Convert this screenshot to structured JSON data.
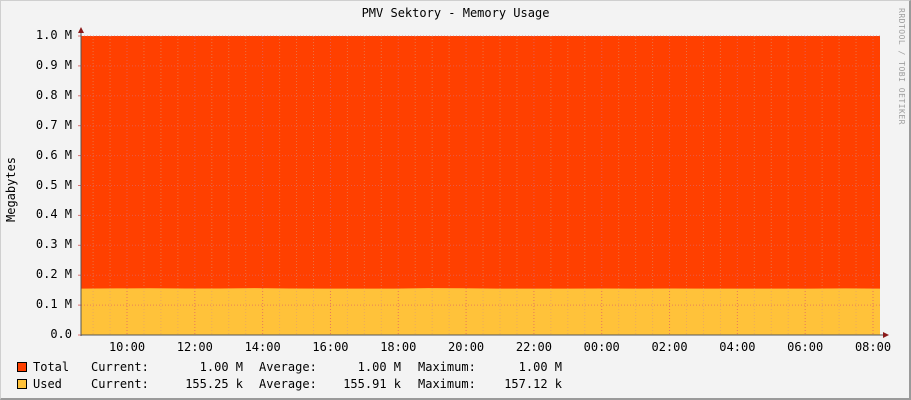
{
  "chart_data": {
    "type": "area",
    "title": "PMV Sektory - Memory Usage",
    "xlabel": "",
    "ylabel": "Megabytes",
    "watermark": "RRDTOOL / TOBI OETIKER",
    "ylim": [
      0,
      1.0
    ],
    "y_ticks": [
      "0.0",
      "0.1 M",
      "0.2 M",
      "0.3 M",
      "0.4 M",
      "0.5 M",
      "0.6 M",
      "0.7 M",
      "0.8 M",
      "0.9 M",
      "1.0 M"
    ],
    "x_ticks": [
      "10:00",
      "12:00",
      "14:00",
      "16:00",
      "18:00",
      "20:00",
      "22:00",
      "00:00",
      "02:00",
      "04:00",
      "06:00",
      "08:00"
    ],
    "grid": true,
    "legend_position": "bottom",
    "series": [
      {
        "name": "Total",
        "color": "#ff4000",
        "unit": "M",
        "values_approx": "constant 1.00 M over the full range"
      },
      {
        "name": "Used",
        "color": "#ffc23a",
        "unit": "k",
        "values_approx": "roughly flat ~155-157 k with small bumps"
      }
    ],
    "x": [
      "09:00",
      "10:00",
      "11:00",
      "12:00",
      "13:00",
      "14:00",
      "15:00",
      "16:00",
      "17:00",
      "18:00",
      "19:00",
      "20:00",
      "21:00",
      "22:00",
      "23:00",
      "00:00",
      "01:00",
      "02:00",
      "03:00",
      "04:00",
      "05:00",
      "06:00",
      "07:00",
      "08:00"
    ],
    "total_values_M": [
      1.0,
      1.0,
      1.0,
      1.0,
      1.0,
      1.0,
      1.0,
      1.0,
      1.0,
      1.0,
      1.0,
      1.0,
      1.0,
      1.0,
      1.0,
      1.0,
      1.0,
      1.0,
      1.0,
      1.0,
      1.0,
      1.0,
      1.0,
      1.0
    ],
    "used_values_k": [
      155.3,
      156.0,
      156.5,
      155.5,
      155.4,
      156.8,
      155.6,
      155.3,
      155.2,
      155.2,
      156.9,
      156.4,
      155.3,
      155.2,
      155.2,
      155.6,
      155.2,
      155.5,
      155.2,
      155.2,
      155.2,
      155.2,
      155.8,
      155.25
    ]
  },
  "legend": [
    {
      "name": "Total",
      "color": "#ff4000",
      "current_label": "Current:",
      "current": "1.00 M",
      "average_label": "Average:",
      "average": "1.00 M",
      "maximum_label": "Maximum:",
      "maximum": "1.00 M"
    },
    {
      "name": "Used",
      "color": "#ffc23a",
      "current_label": "Current:",
      "current": "155.25 k",
      "average_label": "Average:",
      "average": "155.91 k",
      "maximum_label": "Maximum:",
      "maximum": "157.12 k"
    }
  ]
}
